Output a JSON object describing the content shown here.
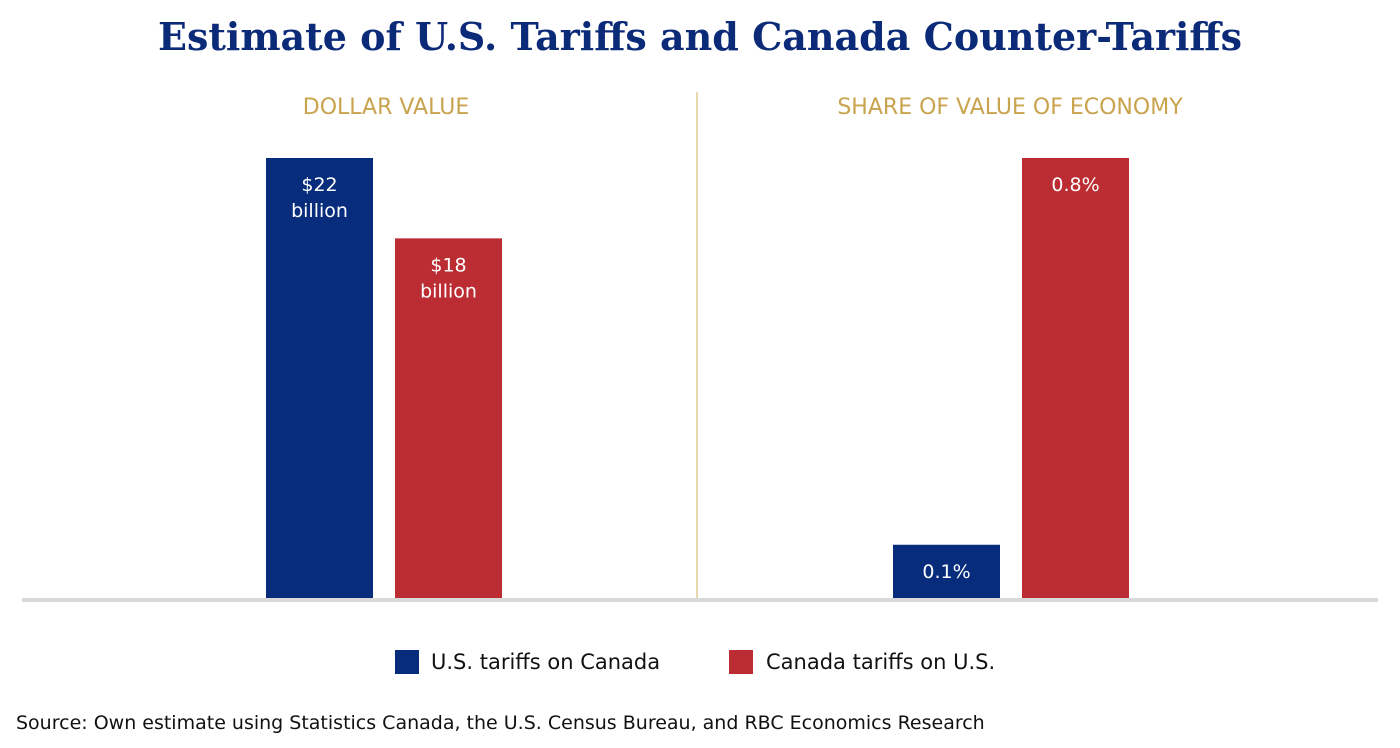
{
  "title": "Estimate of U.S. Tariffs and Canada Counter-Tariffs",
  "source": "Source: Own estimate using Statistics Canada, the U.S. Census Bureau, and RBC Economics Research",
  "colors": {
    "us": "#062c7b",
    "canada": "#bb2d33",
    "panel_title": "#c9a34d",
    "divider": "#e7d8b0",
    "baseline": "#d9d9d9"
  },
  "legend": [
    {
      "label": "U.S. tariffs on Canada",
      "color": "#062c7b"
    },
    {
      "label": "Canada tariffs on U.S.",
      "color": "#bb2d33"
    }
  ],
  "chart_data": [
    {
      "type": "bar",
      "title": "DOLLAR VALUE",
      "categories": [
        "U.S. tariffs on Canada",
        "Canada tariffs on U.S."
      ],
      "values": [
        22,
        18
      ],
      "unit": "billion dollars",
      "labels": [
        "$22\nbillion",
        "$18\nbillion"
      ],
      "ylim": [
        0,
        22
      ],
      "grid": false
    },
    {
      "type": "bar",
      "title": "SHARE OF VALUE OF ECONOMY",
      "categories": [
        "U.S. tariffs on Canada",
        "Canada tariffs on U.S."
      ],
      "values": [
        0.1,
        0.8
      ],
      "unit": "%",
      "labels": [
        "0.1%",
        "0.8%"
      ],
      "ylim": [
        0,
        0.8
      ],
      "grid": false
    }
  ]
}
